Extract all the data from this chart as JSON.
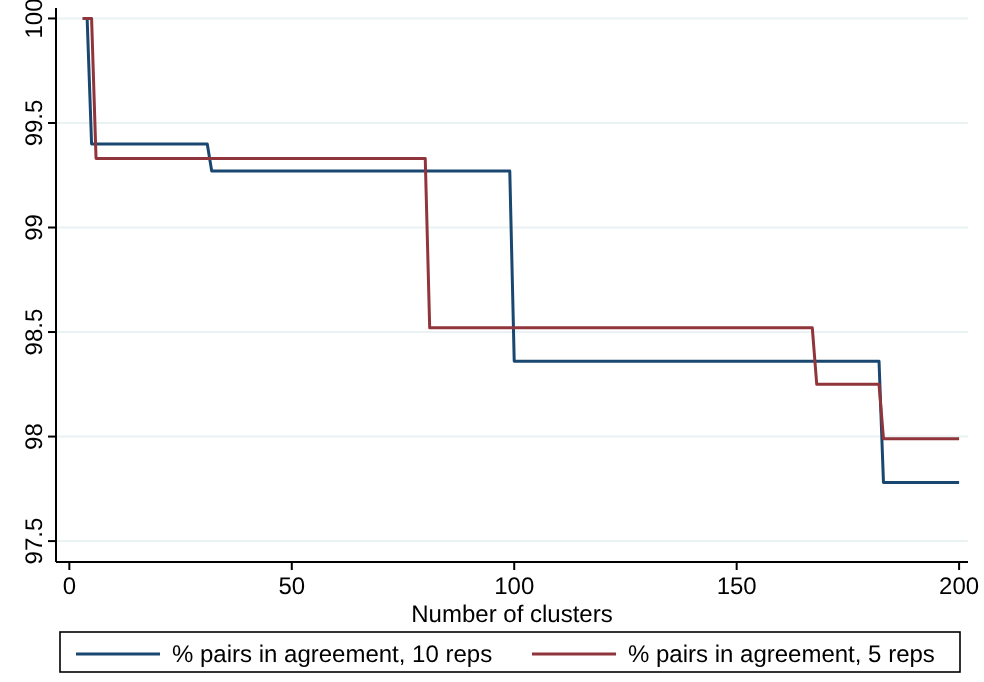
{
  "chart_data": {
    "type": "line",
    "xlabel": "Number of clusters",
    "xlim": [
      -3,
      202
    ],
    "ylim": [
      97.4,
      100.05
    ],
    "xticks": [
      0,
      50,
      100,
      150,
      200
    ],
    "yticks": [
      {
        "value": 97.5,
        "label": "97.5"
      },
      {
        "value": 98,
        "label": "98"
      },
      {
        "value": 98.5,
        "label": "98.5"
      },
      {
        "value": 99,
        "label": "99"
      },
      {
        "value": 99.5,
        "label": "99.5"
      },
      {
        "value": 100,
        "label": "100"
      }
    ],
    "grid": "y",
    "legend": "bottom",
    "marker": "none",
    "line_style": "solid",
    "series": [
      {
        "name": "% pairs in agreement, 10 reps",
        "color": "#1a476f",
        "x": [
          3,
          4,
          5,
          31,
          32,
          99,
          100,
          182,
          183,
          200
        ],
        "values": [
          100,
          100,
          99.4,
          99.4,
          99.27,
          99.27,
          98.36,
          98.36,
          97.78,
          97.78
        ]
      },
      {
        "name": "% pairs in agreement, 5 reps",
        "color": "#90353b",
        "x": [
          3,
          5,
          6,
          80,
          81,
          167,
          168,
          182,
          183,
          200
        ],
        "values": [
          100,
          100,
          99.33,
          99.33,
          98.52,
          98.52,
          98.25,
          98.25,
          97.99,
          97.99
        ]
      }
    ]
  }
}
